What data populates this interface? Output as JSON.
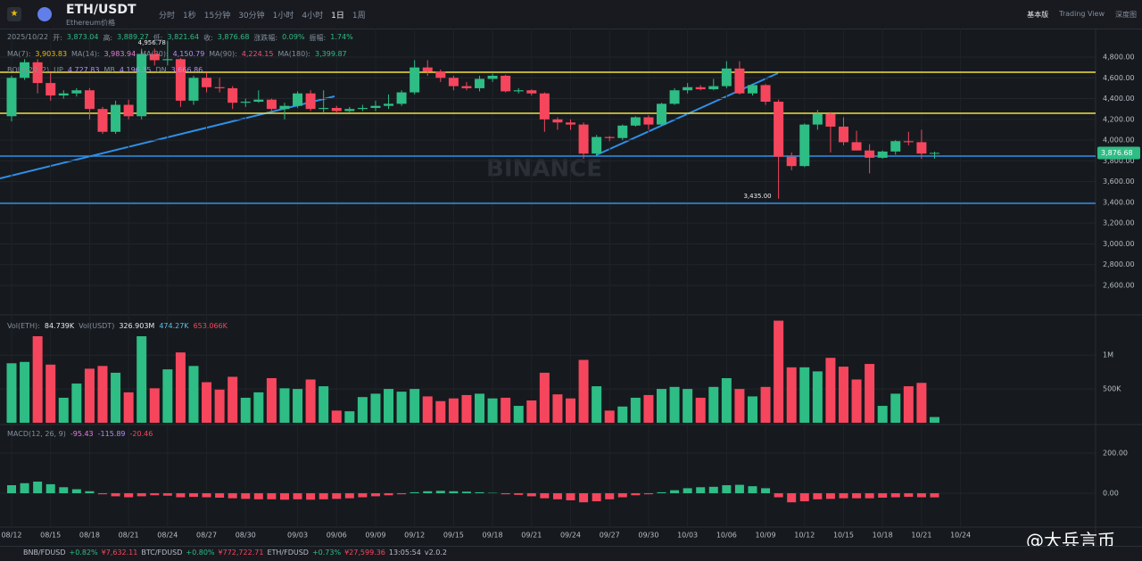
{
  "header": {
    "pair": "ETH/USDT",
    "name": "Ethereum价格",
    "intervals": [
      "分时",
      "1秒",
      "15分钟",
      "30分钟",
      "1小时",
      "4小时",
      "1日",
      "1周"
    ],
    "modes": [
      "基本版",
      "Trading View",
      "深度图"
    ]
  },
  "ohlc_line": [
    "2025/10/22",
    "开:",
    "3,873.04",
    "高:",
    "3,889.27",
    "低:",
    "3,821.64",
    "收:",
    "3,876.68",
    "涨跌幅:",
    "0.09%",
    "振幅:",
    "1.74%"
  ],
  "ma_line": [
    "MA(7):",
    "3,903.83",
    "MA(14):",
    "3,983.94",
    "MA(30):",
    "4,150.79",
    "MA(90):",
    "4,224.15",
    "MA(180):",
    "3,399.87"
  ],
  "boll_line": [
    "BOLL(20, 2)",
    "UP",
    "4,727.83",
    "MB",
    "4,196.35",
    "DN",
    "3,666.86"
  ],
  "vol_line": [
    "Vol(ETH):",
    "84.739K",
    "Vol(USDT)",
    "326.903M",
    "474.27K",
    "653.066K"
  ],
  "macd_line": [
    "MACD(12, 26, 9)",
    "-95.43",
    "-115.89",
    "-20.46"
  ],
  "footer": [
    "BNB/FDUSD",
    "+0.82%",
    "¥7,632.11",
    "BTC/FDUSD",
    "+0.80%",
    "¥772,722.71",
    "ETH/FDUSD",
    "+0.73%",
    "¥27,599.36",
    "13:05:54",
    "v2.0.2"
  ],
  "watermark": "@大兵言币",
  "chart_data": {
    "type": "candlestick",
    "up_color": "#2ebd85",
    "down_color": "#f6465d",
    "last_price_label": "3,876.68",
    "low_label": "3,435.00",
    "high_label": "4,956.78",
    "categories": [
      "08/12",
      null,
      null,
      "08/15",
      null,
      null,
      "08/18",
      null,
      null,
      "08/21",
      null,
      null,
      "08/24",
      null,
      null,
      "08/27",
      null,
      null,
      "08/30",
      null,
      null,
      null,
      "09/03",
      null,
      null,
      "09/06",
      null,
      null,
      "09/09",
      null,
      null,
      "09/12",
      null,
      null,
      "09/15",
      null,
      null,
      "09/18",
      null,
      null,
      "09/21",
      null,
      null,
      "09/24",
      null,
      null,
      "09/27",
      null,
      null,
      "09/30",
      null,
      null,
      "10/03",
      null,
      null,
      "10/06",
      null,
      null,
      "10/09",
      null,
      null,
      "10/12",
      null,
      null,
      "10/15",
      null,
      null,
      "10/18",
      null,
      null,
      "10/21",
      null,
      null,
      "10/24",
      null
    ],
    "open": [
      4230,
      4600,
      4750,
      4550,
      4430,
      4450,
      4480,
      4300,
      4080,
      4340,
      4230,
      4830,
      4770,
      4780,
      4380,
      4600,
      4510,
      4500,
      4360,
      4370,
      4390,
      4300,
      4330,
      4450,
      4300,
      4310,
      4280,
      4300,
      4310,
      4330,
      4350,
      4460,
      4700,
      4660,
      4600,
      4520,
      4500,
      4590,
      4620,
      4470,
      4480,
      4450,
      4200,
      4170,
      4150,
      3870,
      4030,
      4020,
      4140,
      4220,
      4150,
      4350,
      4480,
      4510,
      4490,
      4520,
      4690,
      4450,
      4530,
      4370,
      3840,
      3750,
      4150,
      4250,
      4130,
      3980,
      3900,
      3830,
      3890,
      3990,
      3980,
      3873.04,
      null,
      null,
      null
    ],
    "high": [
      4620,
      4780,
      4780,
      4650,
      4480,
      4500,
      4500,
      4320,
      4380,
      4390,
      4880,
      4880,
      4956.78,
      4790,
      4620,
      4650,
      4600,
      4520,
      4400,
      4480,
      4400,
      4360,
      4470,
      4480,
      4480,
      4330,
      4320,
      4340,
      4380,
      4440,
      4480,
      4770,
      4770,
      4680,
      4620,
      4560,
      4620,
      4640,
      4630,
      4500,
      4490,
      4460,
      4220,
      4200,
      4170,
      4050,
      4040,
      4150,
      4230,
      4240,
      4360,
      4500,
      4550,
      4530,
      4590,
      4760,
      4760,
      4540,
      4540,
      4390,
      3880,
      4160,
      4290,
      4270,
      4220,
      4090,
      3960,
      3900,
      4000,
      4080,
      4100,
      3889.27,
      null,
      null,
      null
    ],
    "low": [
      4180,
      4580,
      4450,
      4380,
      4400,
      4420,
      4200,
      4060,
      4060,
      4200,
      4200,
      4720,
      4720,
      4320,
      4340,
      4460,
      4460,
      4300,
      4320,
      4360,
      4280,
      4200,
      4310,
      4280,
      4260,
      4260,
      4270,
      4280,
      4280,
      4300,
      4330,
      4440,
      4620,
      4560,
      4480,
      4480,
      4470,
      4560,
      4460,
      4450,
      4430,
      4080,
      4100,
      4100,
      3820,
      3850,
      3990,
      4000,
      4130,
      4100,
      4140,
      4340,
      4450,
      4480,
      4480,
      4500,
      4440,
      4430,
      4340,
      3435,
      3710,
      3740,
      4100,
      3880,
      3950,
      3900,
      3680,
      3820,
      3860,
      3950,
      3820,
      3821.64,
      null,
      null,
      null
    ],
    "close": [
      4600,
      4750,
      4550,
      4430,
      4450,
      4480,
      4300,
      4080,
      4340,
      4230,
      4830,
      4770,
      4780,
      4380,
      4600,
      4510,
      4500,
      4360,
      4370,
      4390,
      4300,
      4330,
      4450,
      4300,
      4310,
      4280,
      4300,
      4310,
      4330,
      4350,
      4460,
      4700,
      4660,
      4600,
      4520,
      4500,
      4590,
      4620,
      4470,
      4480,
      4450,
      4200,
      4170,
      4150,
      3870,
      4030,
      4020,
      4140,
      4220,
      4150,
      4350,
      4480,
      4510,
      4490,
      4520,
      4690,
      4450,
      4530,
      4370,
      3840,
      3750,
      4150,
      4250,
      4130,
      3980,
      3900,
      3830,
      3890,
      3990,
      3980,
      3870,
      3876.68,
      null,
      null,
      null
    ],
    "volume": [
      880000,
      900000,
      1280000,
      860000,
      370000,
      580000,
      800000,
      840000,
      740000,
      450000,
      1280000,
      510000,
      790000,
      1040000,
      840000,
      600000,
      490000,
      680000,
      370000,
      450000,
      660000,
      510000,
      500000,
      640000,
      540000,
      180000,
      170000,
      380000,
      430000,
      500000,
      460000,
      500000,
      390000,
      320000,
      360000,
      410000,
      430000,
      360000,
      370000,
      250000,
      330000,
      740000,
      420000,
      360000,
      930000,
      540000,
      180000,
      240000,
      370000,
      410000,
      500000,
      530000,
      500000,
      370000,
      530000,
      660000,
      500000,
      390000,
      530000,
      1510000,
      820000,
      820000,
      760000,
      960000,
      830000,
      640000,
      870000,
      250000,
      430000,
      540000,
      590000,
      84739,
      null,
      null,
      null
    ],
    "macd_hist": [
      40,
      50,
      58,
      45,
      30,
      20,
      10,
      -5,
      -15,
      -20,
      -15,
      -10,
      -12,
      -20,
      -18,
      -20,
      -22,
      -25,
      -28,
      -30,
      -30,
      -32,
      -30,
      -32,
      -30,
      -28,
      -25,
      -20,
      -15,
      -10,
      -5,
      5,
      10,
      12,
      10,
      8,
      5,
      2,
      -5,
      -8,
      -15,
      -25,
      -30,
      -35,
      -45,
      -40,
      -30,
      -20,
      -10,
      -5,
      5,
      15,
      25,
      30,
      32,
      40,
      42,
      35,
      25,
      -20,
      -45,
      -40,
      -30,
      -28,
      -25,
      -25,
      -25,
      -22,
      -20,
      -18,
      -20,
      -20.46,
      null,
      null,
      null
    ],
    "ylim": [
      2325,
      5075
    ],
    "yticks": [
      {
        "value": 2600,
        "label": "2,600.00"
      },
      {
        "value": 2800,
        "label": "2,800.00"
      },
      {
        "value": 3000,
        "label": "3,000.00"
      },
      {
        "value": 3200,
        "label": "3,200.00"
      },
      {
        "value": 3400,
        "label": "3,400.00"
      },
      {
        "value": 3600,
        "label": "3,600.00"
      },
      {
        "value": 3800,
        "label": "3,800.00"
      },
      {
        "value": 4000,
        "label": "4,000.00"
      },
      {
        "value": 4200,
        "label": "4,200.00"
      },
      {
        "value": 4400,
        "label": "4,400.00"
      },
      {
        "value": 4600,
        "label": "4,600.00"
      },
      {
        "value": 4800,
        "label": "4,800.00"
      }
    ],
    "vol_ylim": [
      0,
      1570000
    ],
    "vol_yticks": [
      {
        "value": 500000,
        "label": "500K"
      },
      {
        "value": 1000000,
        "label": "1M"
      }
    ],
    "macd_ylim": [
      -164,
      333
    ],
    "macd_yticks": [
      {
        "value": 0,
        "label": "0.00"
      },
      {
        "value": 200,
        "label": "200.00"
      }
    ],
    "levels": [
      {
        "value": 4654,
        "color": "#f0e040"
      },
      {
        "value": 4259,
        "color": "#f0e040"
      },
      {
        "value": 3846,
        "color": "#2f8fe8"
      },
      {
        "value": 3391,
        "color": "#2f8fe8"
      }
    ],
    "grid": true
  }
}
